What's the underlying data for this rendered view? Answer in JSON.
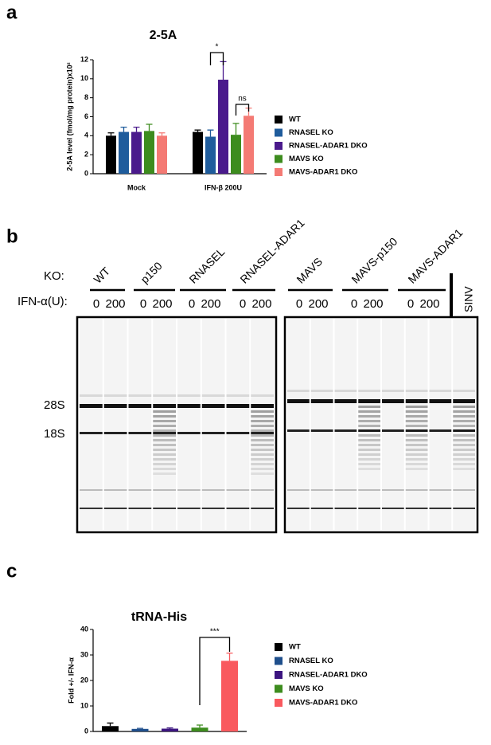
{
  "panel_labels": [
    "a",
    "b",
    "c"
  ],
  "chart_data": [
    {
      "type": "bar",
      "title": "2-5A",
      "y_label": "2-5A level (fmol/mg protein)x10²",
      "categories": [
        "Mock",
        "IFN-β 200U"
      ],
      "series": [
        {
          "name": "WT",
          "color": "#000000",
          "values": [
            4.0,
            4.4
          ],
          "errors": [
            0.3,
            0.2
          ]
        },
        {
          "name": "RNASEL KO",
          "color": "#1f5c9c",
          "values": [
            4.4,
            3.9
          ],
          "errors": [
            0.5,
            0.7
          ]
        },
        {
          "name": "RNASEL-ADAR1 DKO",
          "color": "#4a1a8c",
          "values": [
            4.4,
            9.9
          ],
          "errors": [
            0.5,
            1.9
          ]
        },
        {
          "name": "MAVS KO",
          "color": "#3d8c1e",
          "values": [
            4.5,
            4.1
          ],
          "errors": [
            0.7,
            1.2
          ]
        },
        {
          "name": "MAVS-ADAR1 DKO",
          "color": "#f47a74",
          "values": [
            4.0,
            6.1
          ],
          "errors": [
            0.3,
            0.8
          ]
        }
      ],
      "ylim": [
        0,
        12
      ],
      "yticks": [
        0,
        2,
        4,
        6,
        8,
        10,
        12
      ],
      "annotations": [
        "*",
        "ns"
      ]
    },
    {
      "type": "bar",
      "title": "tRNA-His",
      "y_label": "Fold +/- IFN-α",
      "categories": [
        null
      ],
      "series": [
        {
          "name": "WT",
          "color": "#000000",
          "values": [
            2.1
          ],
          "errors": [
            1.2
          ]
        },
        {
          "name": "RNASEL KO",
          "color": "#1f4f8c",
          "values": [
            1.0
          ],
          "errors": [
            0.2
          ]
        },
        {
          "name": "RNASEL-ADAR1 DKO",
          "color": "#3c1580",
          "values": [
            1.1
          ],
          "errors": [
            0.3
          ]
        },
        {
          "name": "MAVS KO",
          "color": "#3d8c1e",
          "values": [
            1.5
          ],
          "errors": [
            1.0
          ]
        },
        {
          "name": "MAVS-ADAR1 DKO",
          "color": "#f9595e",
          "values": [
            27.7
          ],
          "errors": [
            3.0
          ]
        }
      ],
      "ylim": [
        0,
        40
      ],
      "yticks": [
        0,
        10,
        20,
        30,
        40
      ],
      "annotations": [
        "***"
      ]
    }
  ],
  "gel": {
    "ko_label": "KO:",
    "ifn_label": "IFN-α(U):",
    "groups": [
      "WT",
      "p150",
      "RNASEL",
      "RNASEL-ADAR1",
      "MAVS",
      "MAVS-p150",
      "MAVS-ADAR1"
    ],
    "doses": [
      "0",
      "200"
    ],
    "extra_lane": "SINV",
    "markers": [
      "28S",
      "18S"
    ]
  }
}
